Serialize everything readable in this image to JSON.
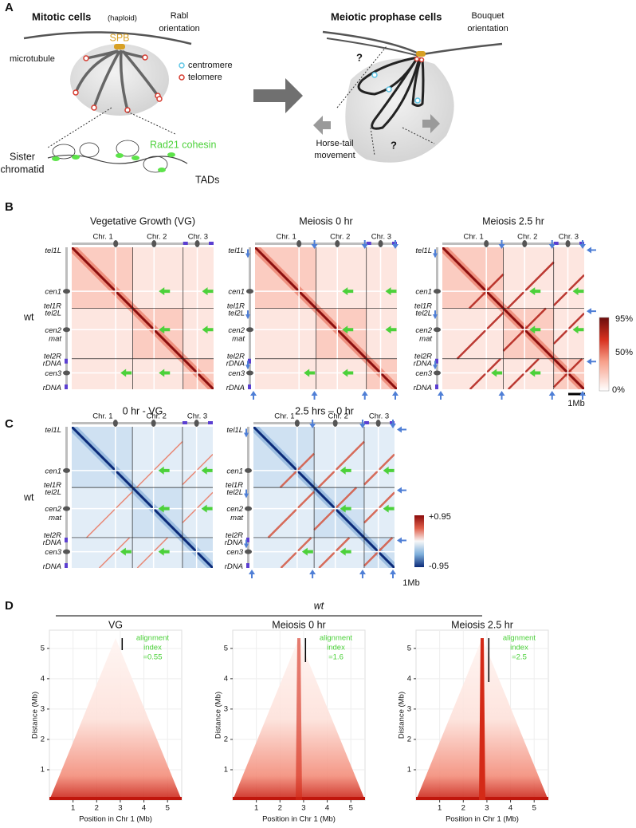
{
  "panel_a": {
    "letter": "A",
    "left": {
      "title": "Mitotic cells",
      "subtitle": "(haploid)",
      "orientation": [
        "Rabl",
        "orientation"
      ],
      "spb": "SPB",
      "microtubule": "microtubule",
      "legend": [
        "centromere",
        "telomere"
      ],
      "sister": [
        "Sister",
        "chromatid"
      ],
      "cohesin": "Rad21 cohesin",
      "tads": "TADs"
    },
    "right": {
      "title": "Meiotic prophase cells",
      "orientation": [
        "Bouquet",
        "orientation"
      ],
      "question": "?",
      "movement": [
        "Horse-tail",
        "movement"
      ]
    }
  },
  "panel_b": {
    "letter": "B",
    "strain": "wt",
    "maps": [
      "Vegetative Growth (VG)",
      "Meiosis 0 hr",
      "Meiosis 2.5 hr"
    ],
    "chromosomes": [
      "Chr. 1",
      "Chr. 2",
      "Chr. 3"
    ],
    "loci": [
      "tel1L",
      "cen1",
      "tel1R",
      "tel2L",
      "cen2",
      "mat",
      "tel2R",
      "rDNA",
      "cen3",
      "rDNA"
    ],
    "colorbar": [
      "95%",
      "50%",
      "0%"
    ],
    "scale": "1Mb"
  },
  "panel_c": {
    "letter": "C",
    "strain": "wt",
    "maps": [
      "0 hr - VG",
      "2.5 hrs – 0 hr"
    ],
    "colorbar": [
      "+0.95",
      "-0.95"
    ],
    "scale": "1Mb"
  },
  "panel_d": {
    "letter": "D",
    "strain": "wt",
    "plots": [
      {
        "title": "VG",
        "index": "=0.55"
      },
      {
        "title": "Meiosis 0 hr",
        "index": "=1.6"
      },
      {
        "title": "Meiosis 2.5 hr",
        "index": "=2.5"
      }
    ],
    "annotation": [
      "alignment",
      "index"
    ],
    "ylabel": "Distance (Mb)",
    "xlabel": "Position in Chr 1 (Mb)",
    "xlim": [
      0,
      5.6
    ],
    "ylim": [
      0,
      5.6
    ],
    "xticks": [
      1,
      2,
      3,
      4,
      5
    ],
    "yticks": [
      1,
      2,
      3,
      4,
      5
    ]
  }
}
